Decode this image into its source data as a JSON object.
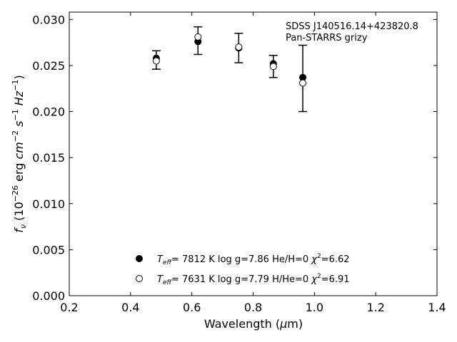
{
  "chart_data": {
    "type": "scatter",
    "annotation": {
      "line1": "SDSS J140516.14+423820.8",
      "line2": "Pan-STARRS grizy"
    },
    "xlabel": {
      "main": "Wavelength (",
      "mu": "μ",
      "rest": "m)"
    },
    "ylabel": {
      "f": "f",
      "nu": "ν",
      "open": " (10",
      "exp1": "−26",
      "erg": " erg ",
      "cm": "cm",
      "exp2": "−2",
      "s": " s",
      "exp3": "−1",
      "Hz": " Hz",
      "exp4": "−1",
      "close": ")"
    },
    "xlim": [
      0.2,
      1.4
    ],
    "ylim": [
      0.0,
      0.0308
    ],
    "x_ticks": [
      0.2,
      0.4,
      0.6,
      0.8,
      1.0,
      1.2,
      1.4
    ],
    "x_tick_labels": [
      "0.2",
      "0.4",
      "0.6",
      "0.8",
      "1.0",
      "1.2",
      "1.4"
    ],
    "y_ticks": [
      0.0,
      0.005,
      0.01,
      0.015,
      0.02,
      0.025,
      0.03
    ],
    "y_tick_labels": [
      "0.000",
      "0.005",
      "0.010",
      "0.015",
      "0.020",
      "0.025",
      "0.030"
    ],
    "observed": {
      "x": [
        0.484,
        0.62,
        0.753,
        0.866,
        0.962
      ],
      "y": [
        0.0256,
        0.0277,
        0.0269,
        0.0249,
        0.0236
      ],
      "err": [
        0.001,
        0.0015,
        0.0016,
        0.0012,
        0.0036
      ]
    },
    "series": [
      {
        "marker": "filled",
        "x": [
          0.484,
          0.62,
          0.753,
          0.866,
          0.962
        ],
        "y": [
          0.0258,
          0.0276,
          0.0269,
          0.0252,
          0.0237
        ],
        "legend": {
          "T": "T",
          "eff": "eff",
          "params": "=  7812 K  log g=7.86  He/H=0  ",
          "chi": "χ",
          "two": "2",
          "chival": "=6.62"
        }
      },
      {
        "marker": "open",
        "x": [
          0.484,
          0.62,
          0.753,
          0.866,
          0.962
        ],
        "y": [
          0.0255,
          0.0281,
          0.027,
          0.0249,
          0.0231
        ],
        "legend": {
          "T": "T",
          "eff": "eff",
          "params": "=  7631 K  log g=7.79  H/He=0  ",
          "chi": "χ",
          "two": "2",
          "chival": "=6.91"
        }
      }
    ],
    "legend_position": "lower-center",
    "grid": false
  }
}
